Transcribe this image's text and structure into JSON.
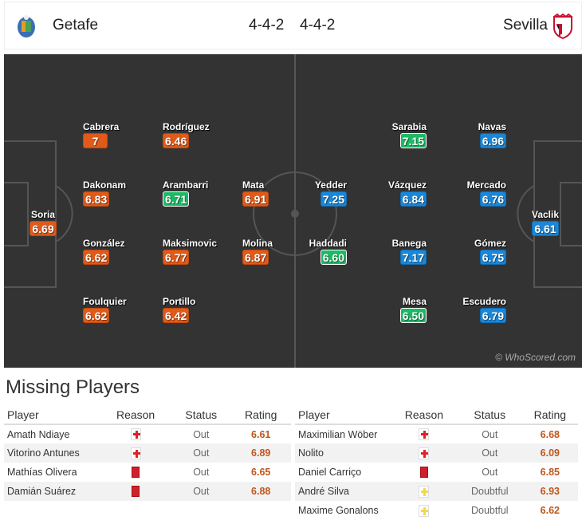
{
  "header": {
    "home_team": "Getafe",
    "away_team": "Sevilla",
    "home_formation": "4-4-2",
    "away_formation": "4-4-2"
  },
  "colors": {
    "home_rating": "#e05a1a",
    "away_rating": "#1a87d8",
    "top_rating": "#1db965",
    "pitch": "#333333"
  },
  "home_players": [
    {
      "name": "Soria",
      "rating": "6.69",
      "hl": false
    },
    {
      "name": "Cabrera",
      "rating": "7",
      "hl": false
    },
    {
      "name": "Dakonam",
      "rating": "6.83",
      "hl": false
    },
    {
      "name": "González",
      "rating": "6.62",
      "hl": false
    },
    {
      "name": "Foulquier",
      "rating": "6.62",
      "hl": false
    },
    {
      "name": "Rodríguez",
      "rating": "6.46",
      "hl": false
    },
    {
      "name": "Arambarri",
      "rating": "6.71",
      "hl": true
    },
    {
      "name": "Maksimovic",
      "rating": "6.77",
      "hl": false
    },
    {
      "name": "Portillo",
      "rating": "6.42",
      "hl": false
    },
    {
      "name": "Mata",
      "rating": "6.91",
      "hl": false
    },
    {
      "name": "Molina",
      "rating": "6.87",
      "hl": false
    }
  ],
  "away_players": [
    {
      "name": "Vaclik",
      "rating": "6.61",
      "hl": false
    },
    {
      "name": "Navas",
      "rating": "6.96",
      "hl": false
    },
    {
      "name": "Mercado",
      "rating": "6.76",
      "hl": false
    },
    {
      "name": "Gómez",
      "rating": "6.75",
      "hl": false
    },
    {
      "name": "Escudero",
      "rating": "6.79",
      "hl": false
    },
    {
      "name": "Sarabia",
      "rating": "7.15",
      "hl": true
    },
    {
      "name": "Vázquez",
      "rating": "6.84",
      "hl": false
    },
    {
      "name": "Banega",
      "rating": "7.17",
      "hl": false
    },
    {
      "name": "Mesa",
      "rating": "6.50",
      "hl": true
    },
    {
      "name": "Yedder",
      "rating": "7.25",
      "hl": false
    },
    {
      "name": "Haddadi",
      "rating": "6.60",
      "hl": true
    }
  ],
  "watermark": "© WhoScored.com",
  "missing": {
    "title": "Missing Players",
    "columns": [
      "Player",
      "Reason",
      "Status",
      "Rating"
    ],
    "home": [
      {
        "player": "Amath Ndiaye",
        "reason": "injury",
        "status": "Out",
        "rating": "6.61"
      },
      {
        "player": "Vitorino Antunes",
        "reason": "injury",
        "status": "Out",
        "rating": "6.89"
      },
      {
        "player": "Mathías Olivera",
        "reason": "red-card",
        "status": "Out",
        "rating": "6.65"
      },
      {
        "player": "Damián Suárez",
        "reason": "red-card",
        "status": "Out",
        "rating": "6.88"
      }
    ],
    "away": [
      {
        "player": "Maximilian Wöber",
        "reason": "injury",
        "status": "Out",
        "rating": "6.68"
      },
      {
        "player": "Nolito",
        "reason": "injury",
        "status": "Out",
        "rating": "6.09"
      },
      {
        "player": "Daniel Carriço",
        "reason": "red-card",
        "status": "Out",
        "rating": "6.85"
      },
      {
        "player": "André Silva",
        "reason": "doubtful",
        "status": "Doubtful",
        "rating": "6.93"
      },
      {
        "player": "Maxime Gonalons",
        "reason": "doubtful",
        "status": "Doubtful",
        "rating": "6.62"
      }
    ]
  }
}
